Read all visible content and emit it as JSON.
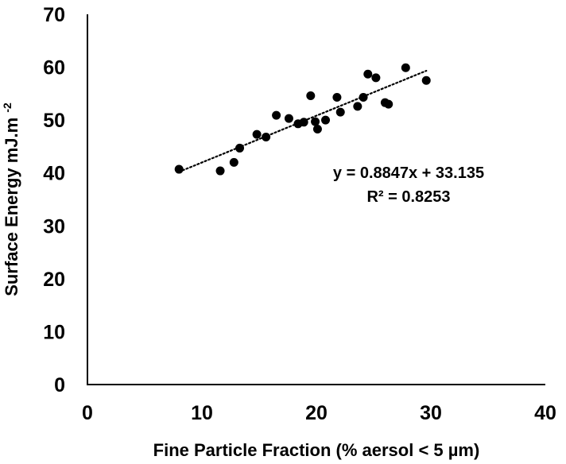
{
  "chart_data": {
    "type": "scatter",
    "title": "",
    "xlabel": "Fine Particle Fraction (% aersol < 5 µm)",
    "ylabel_main": "Surface Energy mJ.m",
    "ylabel_sup": "-2",
    "xlim": [
      0,
      40
    ],
    "ylim": [
      0,
      70
    ],
    "xticks": [
      0,
      10,
      20,
      30,
      40
    ],
    "yticks": [
      0,
      10,
      20,
      30,
      40,
      50,
      60,
      70
    ],
    "grid": false,
    "legend": "none",
    "series": [
      {
        "points": [
          {
            "x": 8.0,
            "y": 40.7
          },
          {
            "x": 11.6,
            "y": 40.4
          },
          {
            "x": 12.8,
            "y": 42.0
          },
          {
            "x": 13.3,
            "y": 44.7
          },
          {
            "x": 14.8,
            "y": 47.3
          },
          {
            "x": 15.6,
            "y": 46.8
          },
          {
            "x": 16.5,
            "y": 50.9
          },
          {
            "x": 17.6,
            "y": 50.3
          },
          {
            "x": 18.4,
            "y": 49.3
          },
          {
            "x": 18.9,
            "y": 49.6
          },
          {
            "x": 19.5,
            "y": 54.6
          },
          {
            "x": 19.9,
            "y": 49.7
          },
          {
            "x": 20.1,
            "y": 48.3
          },
          {
            "x": 20.8,
            "y": 50.0
          },
          {
            "x": 21.8,
            "y": 54.3
          },
          {
            "x": 22.1,
            "y": 51.5
          },
          {
            "x": 23.6,
            "y": 52.6
          },
          {
            "x": 24.1,
            "y": 54.3
          },
          {
            "x": 24.5,
            "y": 58.7
          },
          {
            "x": 25.2,
            "y": 58.0
          },
          {
            "x": 26.0,
            "y": 53.3
          },
          {
            "x": 26.3,
            "y": 53.0
          },
          {
            "x": 27.8,
            "y": 59.9
          },
          {
            "x": 29.6,
            "y": 57.5
          }
        ],
        "color": "#000000"
      }
    ],
    "trendline": {
      "style": "dotted",
      "slope": 0.8847,
      "intercept": 33.135,
      "x_range": [
        8.0,
        29.6
      ],
      "equation_text": "y = 0.8847x + 33.135",
      "r2_text": "R² = 0.8253"
    }
  }
}
